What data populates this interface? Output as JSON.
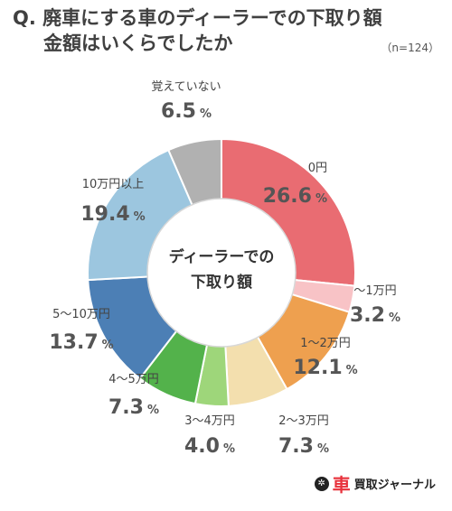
{
  "title": {
    "line1": "Q. 廃車にする車のディーラーでの下取り額",
    "line2": "金額はいくらでしたか",
    "sample": "（n=124）"
  },
  "center_label": {
    "line1": "ディーラーでの",
    "line2": "下取り額"
  },
  "brand": {
    "mark": "✲",
    "main": "車",
    "sub": "買取ジャーナル"
  },
  "colors": {
    "0円": "#e96c72",
    "〜1万円": "#f8c3c6",
    "1〜2万円": "#eea04f",
    "2〜3万円": "#f3dfae",
    "3〜4万円": "#9ed67a",
    "4〜5万円": "#53b24b",
    "5〜10万円": "#4c7fb5",
    "10万円以上": "#9cc6df",
    "覚えていない": "#b1b1b1"
  },
  "chart_data": {
    "type": "pie",
    "donut": true,
    "start": "top",
    "direction": "clockwise",
    "unit": "%",
    "categories": [
      "0円",
      "〜1万円",
      "1〜2万円",
      "2〜3万円",
      "3〜4万円",
      "4〜5万円",
      "5〜10万円",
      "10万円以上",
      "覚えていない"
    ],
    "values": [
      26.6,
      3.2,
      12.1,
      7.3,
      4.0,
      7.3,
      13.7,
      19.4,
      6.5
    ],
    "value_labels": [
      "26.6",
      "3.2",
      "12.1",
      "7.3",
      "4.0",
      "7.3",
      "13.7",
      "19.4",
      "6.5"
    ]
  }
}
